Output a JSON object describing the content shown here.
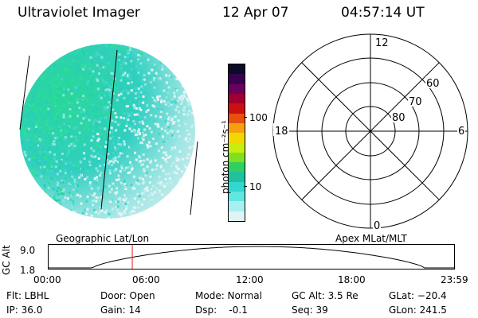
{
  "header": {
    "instrument": "Ultraviolet Imager",
    "date": "12 Apr 07",
    "time": "04:57:14 UT"
  },
  "colorbar": {
    "label": "photon cm⁻²s⁻¹",
    "ticks": [
      "100",
      "10"
    ],
    "colors": [
      "#0b0b2a",
      "#3a0050",
      "#6a0060",
      "#a00030",
      "#cc1010",
      "#e85010",
      "#f5a010",
      "#f0d800",
      "#c8ee10",
      "#80e020",
      "#30d060",
      "#20c0a0",
      "#30d8d0",
      "#60e8e0",
      "#a8f0f0",
      "#e0f4f4"
    ]
  },
  "polar": {
    "mlat_labels": [
      "60",
      "70",
      "80"
    ],
    "mlt_labels": {
      "top": "12",
      "left": "18",
      "right": "6",
      "bottom": "0"
    }
  },
  "timeline": {
    "ylabel": "GC Alt",
    "y_ticks": [
      "9.0",
      "1.8"
    ],
    "left_title": "Geographic Lat/Lon",
    "right_title": "Apex MLat/MLT",
    "x_ticks": [
      "00:00",
      "06:00",
      "12:00",
      "18:00",
      "23:59"
    ],
    "current_time_fraction": 0.206
  },
  "info": {
    "flt": "Flt: LBHL",
    "ip": "IP: 36.0",
    "door": "Door: Open",
    "gain": "Gain: 14",
    "mode": "Mode: Normal",
    "dsp": "Dsp:    -0.1",
    "gc_alt": "GC Alt: 3.5 Re",
    "seq": "Seq: 39",
    "glat": "GLat: −20.4",
    "glon": "GLon: 241.5"
  }
}
